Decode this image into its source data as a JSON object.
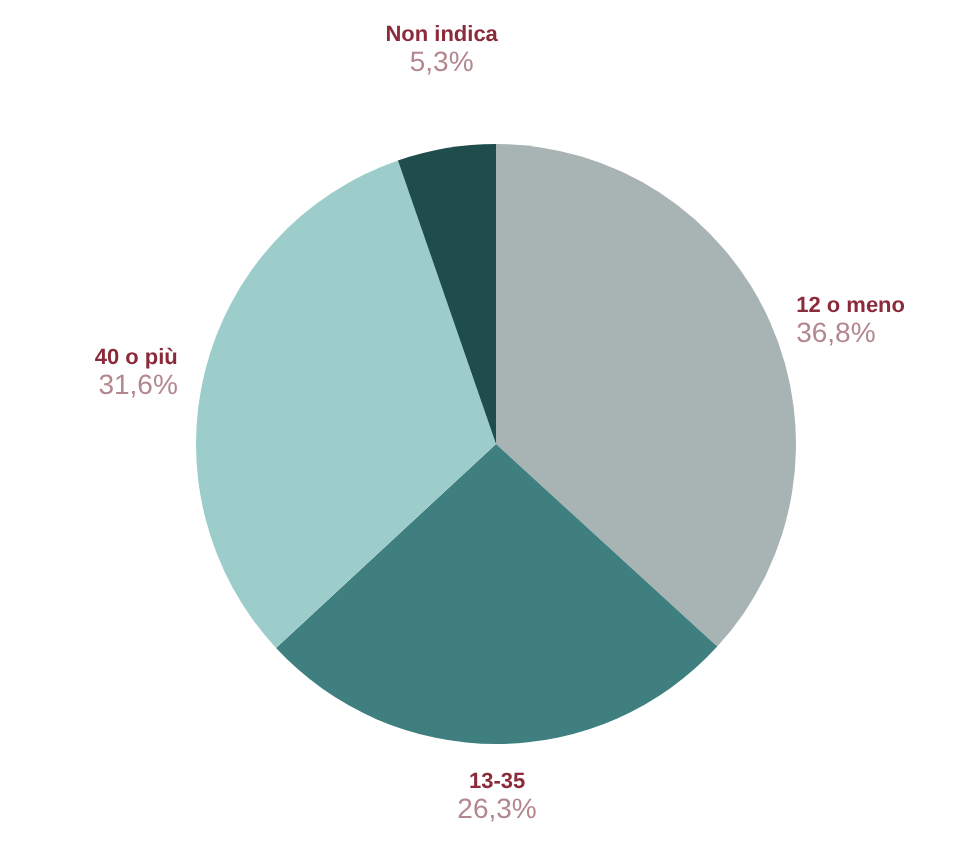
{
  "chart_data": {
    "type": "pie",
    "categories": [
      "12 o meno",
      "13-35",
      "40 o più",
      "Non indica"
    ],
    "values": [
      36.8,
      26.3,
      31.6,
      5.3
    ],
    "colors": [
      "#a7b4b3",
      "#3f7f80",
      "#9ccdcb",
      "#1e4d4c"
    ],
    "value_labels": [
      "36,8%",
      "26,3%",
      "31,6%",
      "5,3%"
    ]
  }
}
